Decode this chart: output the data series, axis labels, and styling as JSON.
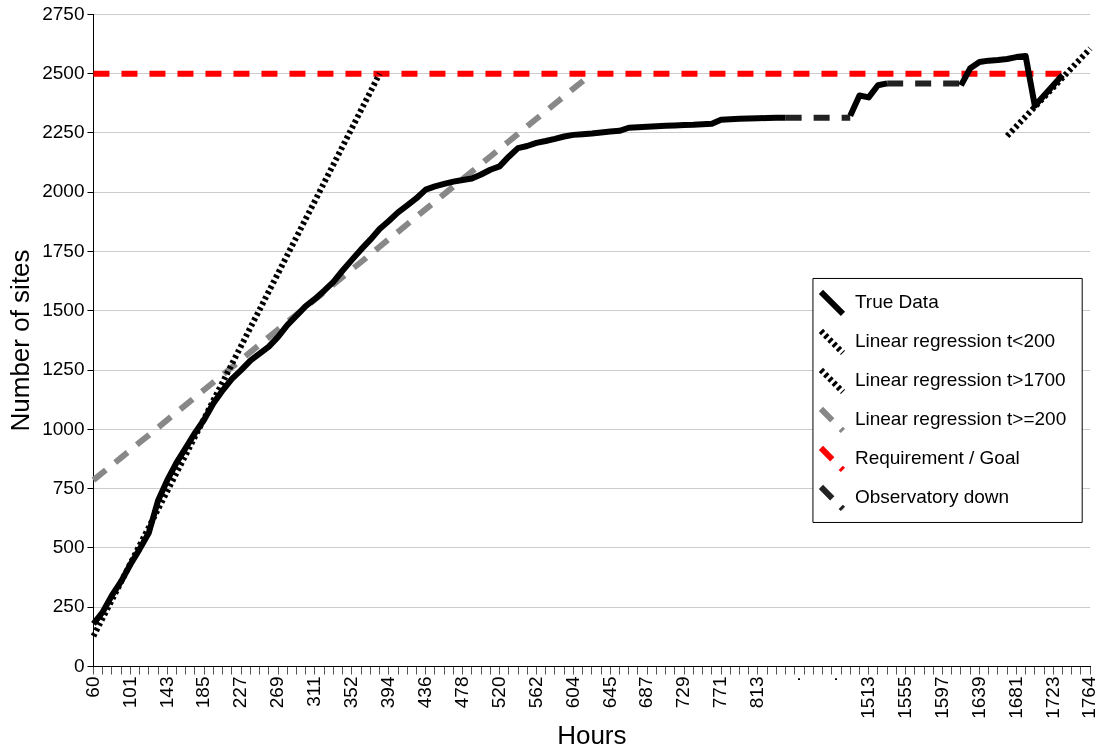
{
  "chart_data": {
    "type": "line",
    "xlabel": "Hours",
    "ylabel": "Number of sites",
    "categories": [
      "60",
      null,
      null,
      null,
      "101",
      null,
      null,
      null,
      "143",
      null,
      null,
      null,
      "185",
      null,
      null,
      null,
      "227",
      null,
      null,
      null,
      "269",
      null,
      null,
      null,
      "311",
      null,
      null,
      null,
      "352",
      null,
      null,
      null,
      "394",
      null,
      null,
      null,
      "436",
      null,
      null,
      null,
      "478",
      null,
      null,
      null,
      "520",
      null,
      null,
      null,
      "562",
      null,
      null,
      null,
      "604",
      null,
      null,
      null,
      "645",
      null,
      null,
      null,
      "687",
      null,
      null,
      null,
      "729",
      null,
      null,
      null,
      "771",
      null,
      null,
      null,
      "813",
      null,
      null,
      null,
      ".",
      null,
      null,
      null,
      ".",
      null,
      null,
      null,
      "1513",
      null,
      null,
      null,
      "1555",
      null,
      null,
      null,
      "1597",
      null,
      null,
      null,
      "1639",
      null,
      null,
      null,
      "1681",
      null,
      null,
      null,
      "1723",
      null,
      null,
      null,
      "1764"
    ],
    "ylim": [
      0,
      2750
    ],
    "yticks": [
      0,
      250,
      500,
      750,
      1000,
      1250,
      1500,
      1750,
      2000,
      2250,
      2500,
      2750
    ],
    "grid": "y",
    "legend": "right",
    "marker": "none",
    "series": [
      {
        "name": "True Data",
        "color": "#000000",
        "line_style": "solid",
        "values": [
          180,
          230,
          300,
          359,
          430,
          495,
          564,
          700,
          786,
          860,
          922,
          985,
          1042,
          1110,
          1165,
          1213,
          1250,
          1290,
          1320,
          1349,
          1390,
          1440,
          1480,
          1520,
          1550,
          1585,
          1622,
          1670,
          1715,
          1759,
          1800,
          1845,
          1879,
          1915,
          1945,
          1975,
          2011,
          2025,
          2035,
          2045,
          2052,
          2058,
          2075,
          2095,
          2109,
          2150,
          2186,
          2195,
          2208,
          2216,
          2225,
          2235,
          2242,
          2245,
          2248,
          2252,
          2256,
          2259,
          2272,
          2274,
          2276,
          2278,
          2280,
          2282,
          2284,
          2285,
          2287,
          2289,
          2306,
          2308,
          2310,
          2311,
          2312,
          2313,
          2314,
          2314,
          null,
          null,
          null,
          null,
          null,
          null,
          2323,
          2408,
          2400,
          2451,
          2459,
          null,
          null,
          null,
          null,
          null,
          null,
          null,
          2451,
          2523,
          2549,
          2555,
          2558,
          2562,
          2570,
          2575,
          2365,
          2408,
          2451,
          2494,
          null,
          null,
          null
        ]
      },
      {
        "name": "Linear regression t<200",
        "color": "#000000",
        "line_style": "dotted",
        "values": [
          128,
          205,
          281,
          358,
          434,
          511,
          587,
          664,
          740,
          817,
          893,
          970,
          1046,
          1123,
          1199,
          1276,
          1352,
          1429,
          1505,
          1582,
          1658,
          1735,
          1811,
          1888,
          1964,
          2041,
          2117,
          2194,
          2270,
          2347,
          2423,
          2500,
          null,
          null,
          null,
          null,
          null,
          null,
          null,
          null,
          null,
          null,
          null,
          null,
          null,
          null,
          null,
          null,
          null,
          null,
          null,
          null,
          null,
          null,
          null,
          null,
          null,
          null,
          null,
          null,
          null,
          null,
          null,
          null,
          null,
          null,
          null,
          null,
          null,
          null,
          null,
          null,
          null,
          null,
          null,
          null,
          null,
          null,
          null,
          null,
          null,
          null,
          null,
          null,
          null,
          null,
          null,
          null,
          null,
          null,
          null,
          null,
          null,
          null,
          null,
          null,
          null,
          null,
          null,
          null,
          null,
          null,
          null,
          null,
          null,
          null,
          null,
          null,
          null
        ]
      },
      {
        "name": "Linear regression t>1700",
        "color": "#000000",
        "line_style": "dotted",
        "values": [
          null,
          null,
          null,
          null,
          null,
          null,
          null,
          null,
          null,
          null,
          null,
          null,
          null,
          null,
          null,
          null,
          null,
          null,
          null,
          null,
          null,
          null,
          null,
          null,
          null,
          null,
          null,
          null,
          null,
          null,
          null,
          null,
          null,
          null,
          null,
          null,
          null,
          null,
          null,
          null,
          null,
          null,
          null,
          null,
          null,
          null,
          null,
          null,
          null,
          null,
          null,
          null,
          null,
          null,
          null,
          null,
          null,
          null,
          null,
          null,
          null,
          null,
          null,
          null,
          null,
          null,
          null,
          null,
          null,
          null,
          null,
          null,
          null,
          null,
          null,
          null,
          null,
          null,
          null,
          null,
          null,
          null,
          null,
          null,
          null,
          null,
          null,
          null,
          null,
          null,
          null,
          null,
          null,
          null,
          null,
          null,
          null,
          null,
          null,
          2237,
          2278,
          2319,
          2360,
          2401,
          2442,
          2483,
          2524,
          2565,
          2606
        ]
      },
      {
        "name": "Linear regression t>=200",
        "color": "#888888",
        "line_style": "dashed",
        "values": [
          786,
          818,
          849,
          881,
          913,
          945,
          976,
          1008,
          1040,
          1072,
          1103,
          1135,
          1167,
          1199,
          1230,
          1262,
          1294,
          1326,
          1357,
          1389,
          1421,
          1453,
          1484,
          1516,
          1548,
          1579,
          1611,
          1643,
          1675,
          1706,
          1738,
          1770,
          1802,
          1833,
          1865,
          1897,
          1929,
          1960,
          1992,
          2024,
          2056,
          2087,
          2119,
          2151,
          2183,
          2214,
          2246,
          2278,
          2310,
          2341,
          2373,
          2405,
          2437,
          2468,
          2500,
          null,
          null,
          null,
          null,
          null,
          null,
          null,
          null,
          null,
          null,
          null,
          null,
          null,
          null,
          null,
          null,
          null,
          null,
          null,
          null,
          null,
          null,
          null,
          null,
          null,
          null,
          null,
          null,
          null,
          null,
          null,
          null,
          null,
          null,
          null,
          null,
          null,
          null,
          null,
          null,
          null,
          null,
          null,
          null,
          null,
          null,
          null,
          null,
          null,
          null,
          null,
          null,
          null,
          null
        ]
      },
      {
        "name": "Requirement / Goal",
        "color": "#ff0000",
        "line_style": "dashed",
        "values": [
          2500,
          2500,
          2500,
          2500,
          2500,
          2500,
          2500,
          2500,
          2500,
          2500,
          2500,
          2500,
          2500,
          2500,
          2500,
          2500,
          2500,
          2500,
          2500,
          2500,
          2500,
          2500,
          2500,
          2500,
          2500,
          2500,
          2500,
          2500,
          2500,
          2500,
          2500,
          2500,
          2500,
          2500,
          2500,
          2500,
          2500,
          2500,
          2500,
          2500,
          2500,
          2500,
          2500,
          2500,
          2500,
          2500,
          2500,
          2500,
          2500,
          2500,
          2500,
          2500,
          2500,
          2500,
          2500,
          2500,
          2500,
          2500,
          2500,
          2500,
          2500,
          2500,
          2500,
          2500,
          2500,
          2500,
          2500,
          2500,
          2500,
          2500,
          2500,
          2500,
          2500,
          2500,
          2500,
          2500,
          2500,
          2500,
          2500,
          2500,
          2500,
          2500,
          2500,
          2500,
          2500,
          2500,
          2500,
          2500,
          2500,
          2500,
          2500,
          2500,
          2500,
          2500,
          2500,
          2500,
          2500,
          2500,
          2500,
          2500,
          2500,
          2500,
          2500,
          2500,
          2500,
          2500,
          null,
          null,
          null
        ]
      },
      {
        "name": "Observatory down",
        "color": "#222222",
        "line_style": "dashed",
        "values": [
          null,
          null,
          null,
          null,
          null,
          null,
          null,
          null,
          null,
          null,
          null,
          null,
          null,
          null,
          null,
          null,
          null,
          null,
          null,
          null,
          null,
          null,
          null,
          null,
          null,
          null,
          null,
          null,
          null,
          null,
          null,
          null,
          null,
          null,
          null,
          null,
          null,
          null,
          null,
          null,
          null,
          null,
          null,
          null,
          null,
          null,
          null,
          null,
          null,
          null,
          null,
          null,
          null,
          null,
          null,
          null,
          null,
          null,
          null,
          null,
          null,
          null,
          null,
          null,
          null,
          null,
          null,
          null,
          null,
          null,
          null,
          null,
          null,
          null,
          null,
          2314,
          2314,
          2314,
          2314,
          2314,
          2314,
          2314,
          2314,
          null,
          null,
          null,
          2459,
          2459,
          2459,
          2459,
          2459,
          2459,
          2459,
          2459,
          2459,
          null,
          null,
          null,
          null,
          null,
          null,
          null,
          null,
          null,
          null,
          null,
          null,
          null,
          null
        ]
      }
    ]
  }
}
